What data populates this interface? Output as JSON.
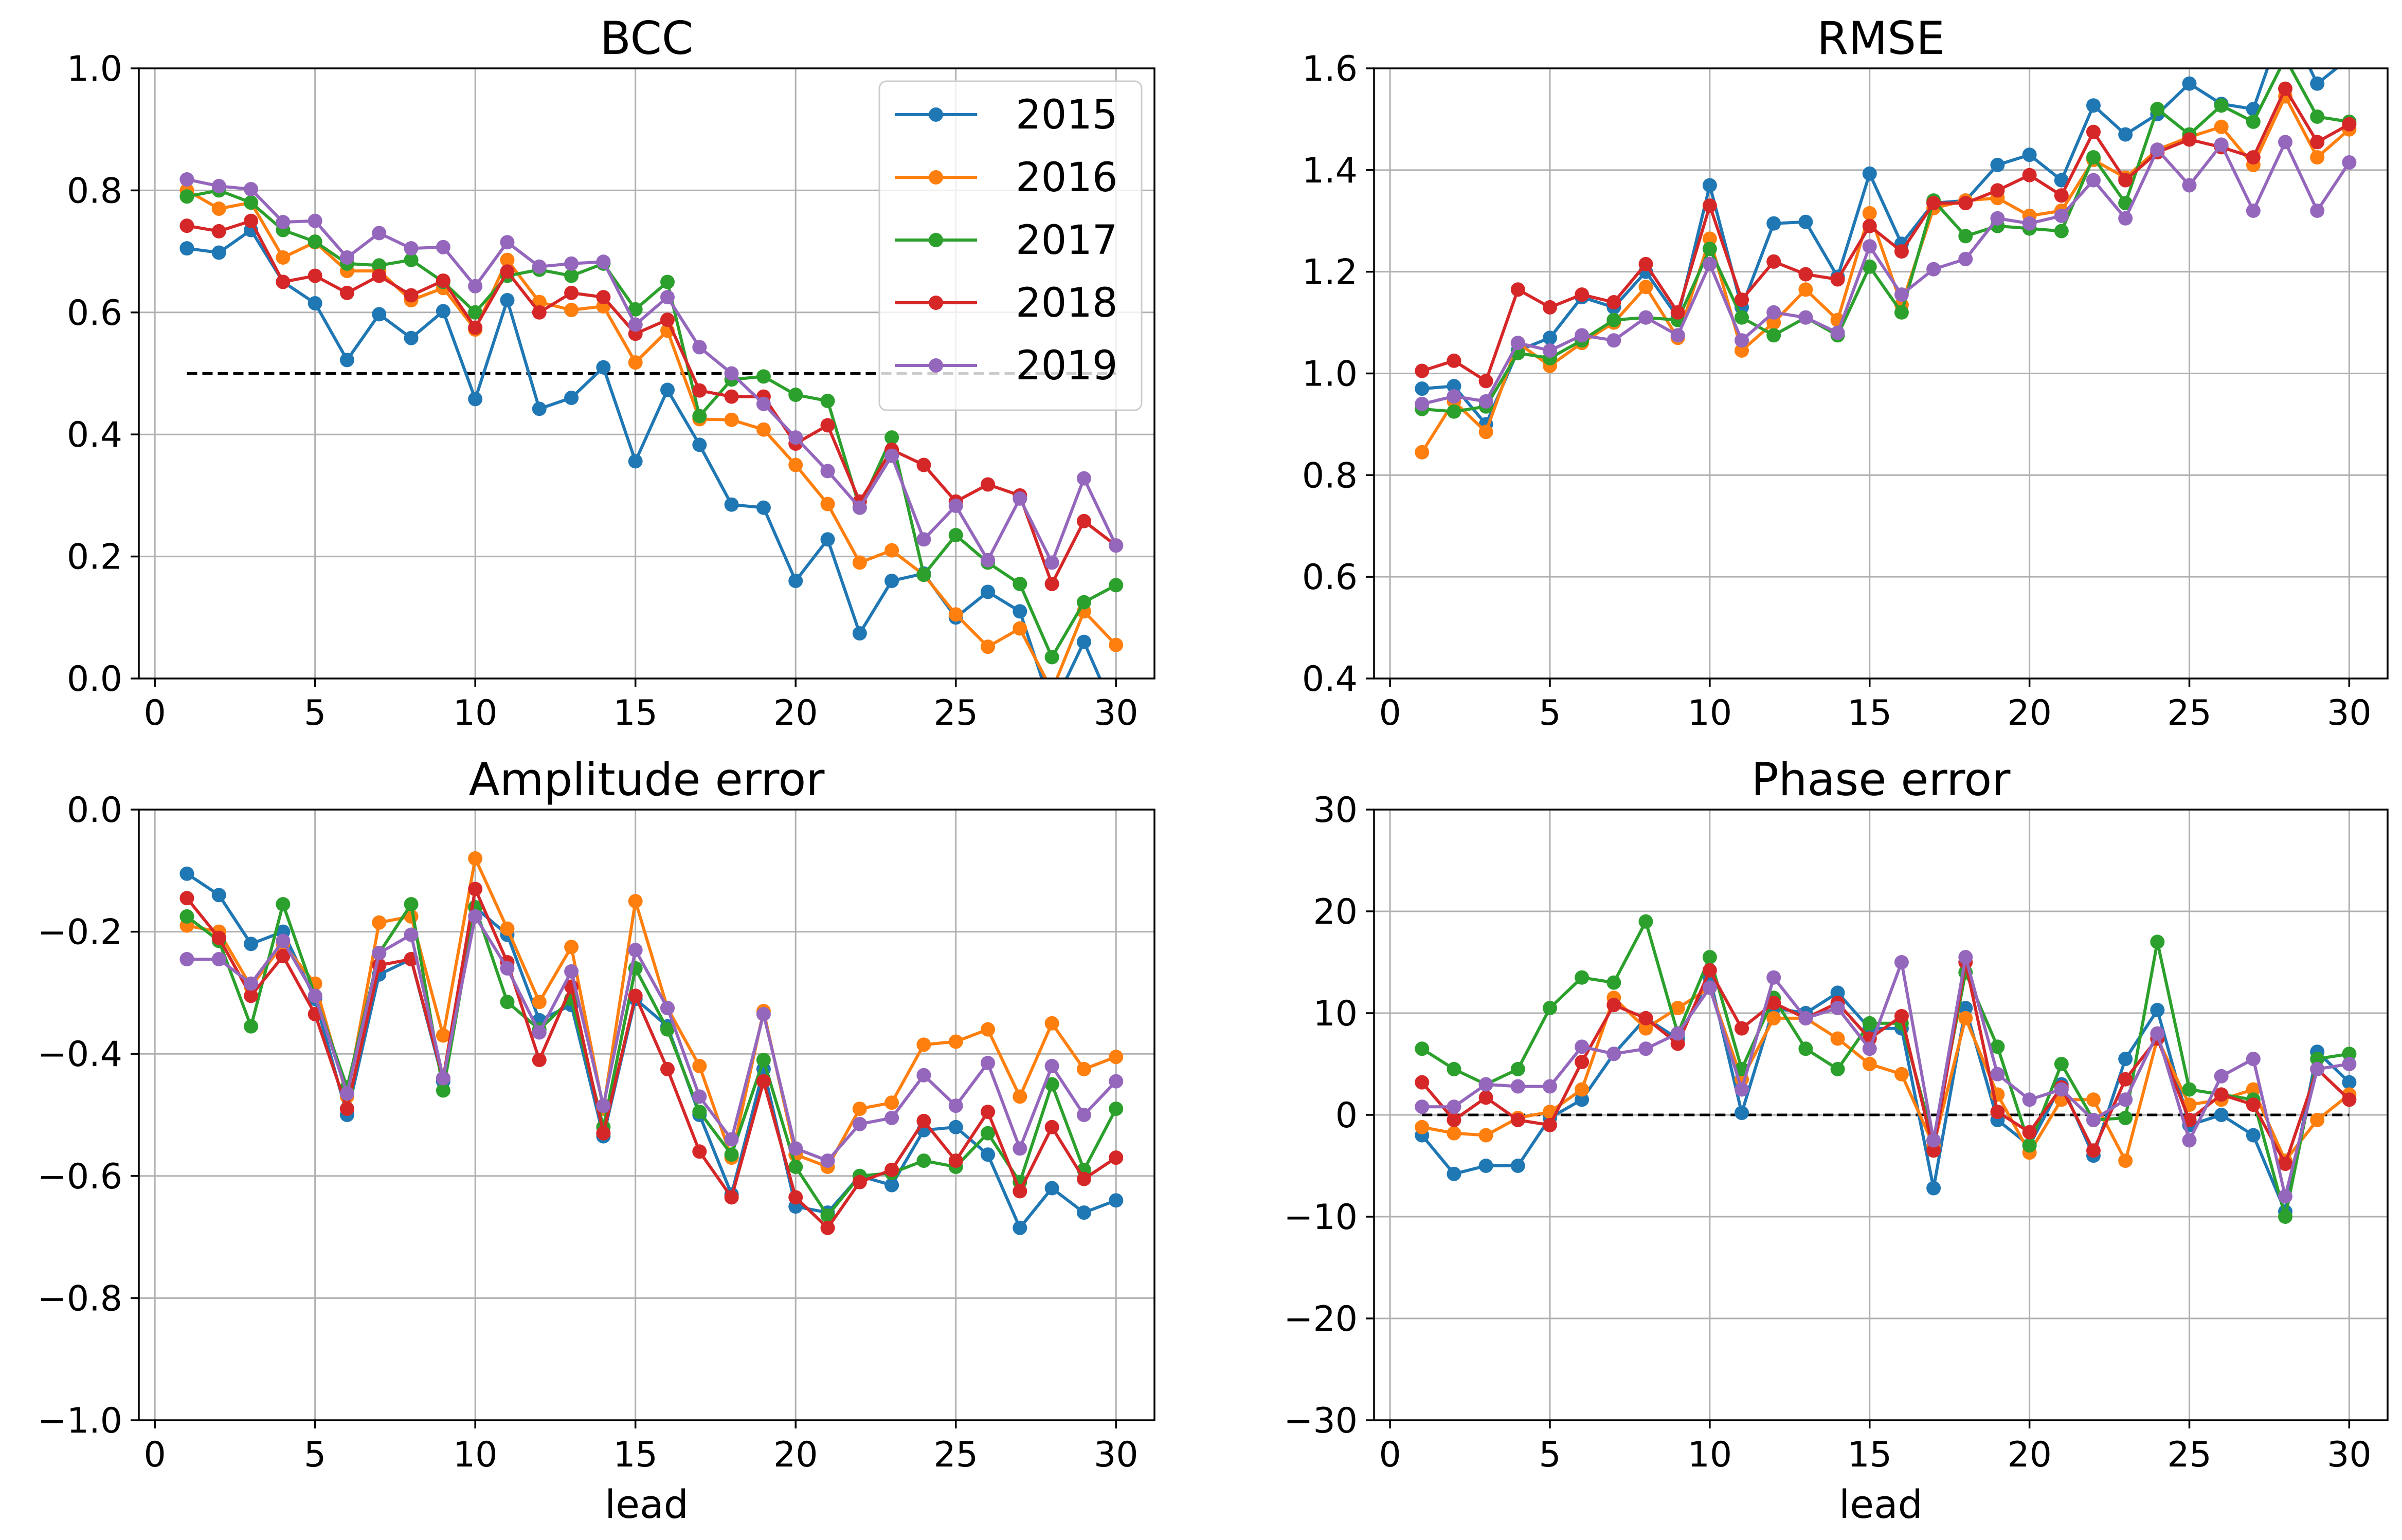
{
  "figure": {
    "legend": {
      "placement": "upper-right",
      "panel": 0,
      "entries": [
        "2015",
        "2016",
        "2017",
        "2018",
        "2019"
      ]
    },
    "series_colors": {
      "2015": "#1f77b4",
      "2016": "#ff7f0e",
      "2017": "#2ca02c",
      "2018": "#d62728",
      "2019": "#9467bd"
    },
    "reference_line_color": "#000000",
    "grid": true
  },
  "chart_data": [
    {
      "type": "line",
      "title": "BCC",
      "xlabel": "",
      "ylabel": "",
      "xlim": [
        -0.5,
        31.2
      ],
      "ylim": [
        0.0,
        1.0
      ],
      "xticks": [
        0,
        5,
        10,
        15,
        20,
        25,
        30
      ],
      "yticks": [
        0.0,
        0.2,
        0.4,
        0.6,
        0.8,
        1.0
      ],
      "ytick_labels": [
        "0.0",
        "0.2",
        "0.4",
        "0.6",
        "0.8",
        "1.0"
      ],
      "reference_line": {
        "y": 0.5,
        "x_from": 1,
        "x_to": 30
      },
      "x": [
        1,
        2,
        3,
        4,
        5,
        6,
        7,
        8,
        9,
        10,
        11,
        12,
        13,
        14,
        15,
        16,
        17,
        18,
        19,
        20,
        21,
        22,
        23,
        24,
        25,
        26,
        27,
        28,
        29,
        30
      ],
      "series": [
        {
          "name": "2015",
          "values": [
            0.705,
            0.698,
            0.735,
            0.65,
            0.615,
            0.522,
            0.597,
            0.558,
            0.602,
            0.458,
            0.62,
            0.442,
            0.46,
            0.51,
            0.356,
            0.473,
            0.383,
            0.285,
            0.28,
            0.16,
            0.228,
            0.074,
            0.16,
            0.172,
            0.1,
            0.142,
            0.11,
            -0.05,
            0.06,
            -0.06
          ]
        },
        {
          "name": "2016",
          "values": [
            0.8,
            0.77,
            0.78,
            0.69,
            0.715,
            0.668,
            0.668,
            0.62,
            0.64,
            0.572,
            0.686,
            0.617,
            0.604,
            0.61,
            0.518,
            0.57,
            0.425,
            0.424,
            0.408,
            0.35,
            0.286,
            0.19,
            0.21,
            0.17,
            0.105,
            0.052,
            0.082,
            -0.02,
            0.11,
            0.055
          ]
        },
        {
          "name": "2017",
          "values": [
            0.79,
            0.8,
            0.78,
            0.735,
            0.716,
            0.68,
            0.677,
            0.686,
            0.65,
            0.6,
            0.66,
            0.67,
            0.66,
            0.68,
            0.605,
            0.65,
            0.43,
            0.49,
            0.495,
            0.465,
            0.455,
            0.28,
            0.395,
            0.17,
            0.235,
            0.19,
            0.155,
            0.035,
            0.125,
            0.153
          ]
        },
        {
          "name": "2018",
          "values": [
            0.742,
            0.733,
            0.75,
            0.65,
            0.66,
            0.632,
            0.66,
            0.628,
            0.652,
            0.575,
            0.667,
            0.6,
            0.632,
            0.625,
            0.565,
            0.588,
            0.472,
            0.462,
            0.462,
            0.385,
            0.415,
            0.29,
            0.375,
            0.35,
            0.29,
            0.318,
            0.3,
            0.155,
            0.258,
            0.218
          ]
        },
        {
          "name": "2019",
          "values": [
            0.818,
            0.807,
            0.802,
            0.748,
            0.75,
            0.69,
            0.73,
            0.705,
            0.707,
            0.643,
            0.715,
            0.675,
            0.68,
            0.683,
            0.58,
            0.625,
            0.543,
            0.5,
            0.45,
            0.395,
            0.34,
            0.28,
            0.365,
            0.228,
            0.283,
            0.194,
            0.295,
            0.19,
            0.328,
            0.218
          ]
        }
      ]
    },
    {
      "type": "line",
      "title": "RMSE",
      "xlabel": "",
      "ylabel": "",
      "xlim": [
        -0.5,
        31.2
      ],
      "ylim": [
        0.4,
        1.6
      ],
      "xticks": [
        0,
        5,
        10,
        15,
        20,
        25,
        30
      ],
      "yticks": [
        0.4,
        0.6,
        0.8,
        1.0,
        1.2,
        1.4,
        1.6
      ],
      "ytick_labels": [
        "0.4",
        "0.6",
        "0.8",
        "1.0",
        "1.2",
        "1.4",
        "1.6"
      ],
      "x": [
        1,
        2,
        3,
        4,
        5,
        6,
        7,
        8,
        9,
        10,
        11,
        12,
        13,
        14,
        15,
        16,
        17,
        18,
        19,
        20,
        21,
        22,
        23,
        24,
        25,
        26,
        27,
        28,
        29,
        30
      ],
      "series": [
        {
          "name": "2015",
          "values": [
            0.97,
            0.975,
            0.9,
            1.045,
            1.07,
            1.15,
            1.13,
            1.2,
            1.11,
            1.37,
            1.13,
            1.295,
            1.298,
            1.19,
            1.393,
            1.255,
            1.335,
            1.34,
            1.41,
            1.43,
            1.38,
            1.527,
            1.47,
            1.51,
            1.57,
            1.53,
            1.52,
            1.7,
            1.57,
            1.62
          ]
        },
        {
          "name": "2016",
          "values": [
            0.845,
            0.945,
            0.885,
            1.06,
            1.015,
            1.06,
            1.1,
            1.17,
            1.07,
            1.265,
            1.045,
            1.1,
            1.165,
            1.105,
            1.315,
            1.135,
            1.325,
            1.34,
            1.345,
            1.31,
            1.32,
            1.42,
            1.385,
            1.44,
            1.465,
            1.485,
            1.41,
            1.545,
            1.425,
            1.48
          ]
        },
        {
          "name": "2017",
          "values": [
            0.93,
            0.925,
            0.935,
            1.04,
            1.03,
            1.065,
            1.105,
            1.11,
            1.105,
            1.245,
            1.11,
            1.075,
            1.11,
            1.075,
            1.21,
            1.12,
            1.34,
            1.27,
            1.29,
            1.285,
            1.28,
            1.425,
            1.335,
            1.52,
            1.47,
            1.527,
            1.495,
            1.62,
            1.505,
            1.495
          ]
        },
        {
          "name": "2018",
          "values": [
            1.005,
            1.025,
            0.985,
            1.165,
            1.13,
            1.155,
            1.14,
            1.215,
            1.12,
            1.33,
            1.145,
            1.22,
            1.195,
            1.185,
            1.29,
            1.24,
            1.335,
            1.335,
            1.36,
            1.39,
            1.35,
            1.475,
            1.38,
            1.435,
            1.46,
            1.445,
            1.425,
            1.56,
            1.455,
            1.49
          ]
        },
        {
          "name": "2019",
          "values": [
            0.94,
            0.955,
            0.945,
            1.06,
            1.045,
            1.075,
            1.065,
            1.11,
            1.075,
            1.215,
            1.065,
            1.12,
            1.11,
            1.08,
            1.25,
            1.155,
            1.205,
            1.225,
            1.305,
            1.295,
            1.31,
            1.38,
            1.305,
            1.44,
            1.37,
            1.45,
            1.32,
            1.455,
            1.32,
            1.415
          ]
        }
      ]
    },
    {
      "type": "line",
      "title": "Amplitude error",
      "xlabel": "lead",
      "ylabel": "",
      "xlim": [
        -0.5,
        31.2
      ],
      "ylim": [
        -1.0,
        0.0
      ],
      "xticks": [
        0,
        5,
        10,
        15,
        20,
        25,
        30
      ],
      "yticks": [
        -1.0,
        -0.8,
        -0.6,
        -0.4,
        -0.2,
        0.0
      ],
      "ytick_labels": [
        "−1.0",
        "−0.8",
        "−0.6",
        "−0.4",
        "−0.2",
        "0.0"
      ],
      "x": [
        1,
        2,
        3,
        4,
        5,
        6,
        7,
        8,
        9,
        10,
        11,
        12,
        13,
        14,
        15,
        16,
        17,
        18,
        19,
        20,
        21,
        22,
        23,
        24,
        25,
        26,
        27,
        28,
        29,
        30
      ],
      "series": [
        {
          "name": "2015",
          "values": [
            -0.105,
            -0.14,
            -0.22,
            -0.2,
            -0.31,
            -0.5,
            -0.27,
            -0.245,
            -0.445,
            -0.16,
            -0.205,
            -0.345,
            -0.32,
            -0.535,
            -0.31,
            -0.355,
            -0.5,
            -0.63,
            -0.425,
            -0.65,
            -0.66,
            -0.6,
            -0.615,
            -0.525,
            -0.52,
            -0.565,
            -0.685,
            -0.62,
            -0.66,
            -0.64
          ]
        },
        {
          "name": "2016",
          "values": [
            -0.19,
            -0.2,
            -0.29,
            -0.22,
            -0.285,
            -0.47,
            -0.185,
            -0.175,
            -0.37,
            -0.08,
            -0.195,
            -0.315,
            -0.225,
            -0.49,
            -0.15,
            -0.325,
            -0.42,
            -0.57,
            -0.33,
            -0.565,
            -0.585,
            -0.49,
            -0.48,
            -0.385,
            -0.38,
            -0.36,
            -0.47,
            -0.35,
            -0.425,
            -0.405
          ]
        },
        {
          "name": "2017",
          "values": [
            -0.175,
            -0.215,
            -0.355,
            -0.155,
            -0.305,
            -0.455,
            -0.235,
            -0.155,
            -0.46,
            -0.16,
            -0.315,
            -0.36,
            -0.31,
            -0.52,
            -0.26,
            -0.36,
            -0.495,
            -0.565,
            -0.41,
            -0.585,
            -0.665,
            -0.6,
            -0.595,
            -0.575,
            -0.585,
            -0.53,
            -0.61,
            -0.45,
            -0.59,
            -0.49
          ]
        },
        {
          "name": "2018",
          "values": [
            -0.145,
            -0.21,
            -0.305,
            -0.24,
            -0.335,
            -0.49,
            -0.255,
            -0.245,
            -0.44,
            -0.13,
            -0.25,
            -0.41,
            -0.29,
            -0.53,
            -0.305,
            -0.425,
            -0.56,
            -0.635,
            -0.445,
            -0.635,
            -0.685,
            -0.61,
            -0.59,
            -0.51,
            -0.575,
            -0.495,
            -0.625,
            -0.52,
            -0.605,
            -0.57
          ]
        },
        {
          "name": "2019",
          "values": [
            -0.245,
            -0.245,
            -0.285,
            -0.215,
            -0.305,
            -0.465,
            -0.235,
            -0.205,
            -0.44,
            -0.175,
            -0.26,
            -0.365,
            -0.265,
            -0.485,
            -0.23,
            -0.325,
            -0.47,
            -0.54,
            -0.335,
            -0.555,
            -0.575,
            -0.515,
            -0.505,
            -0.435,
            -0.485,
            -0.415,
            -0.555,
            -0.42,
            -0.5,
            -0.445
          ]
        }
      ]
    },
    {
      "type": "line",
      "title": "Phase error",
      "xlabel": "lead",
      "ylabel": "",
      "xlim": [
        -0.5,
        31.2
      ],
      "ylim": [
        -30,
        30
      ],
      "xticks": [
        0,
        5,
        10,
        15,
        20,
        25,
        30
      ],
      "yticks": [
        -30,
        -20,
        -10,
        0,
        10,
        20,
        30
      ],
      "ytick_labels": [
        "−30",
        "−20",
        "−10",
        "0",
        "10",
        "20",
        "30"
      ],
      "reference_line": {
        "y": 0,
        "x_from": 1,
        "x_to": 30
      },
      "x": [
        1,
        2,
        3,
        4,
        5,
        6,
        7,
        8,
        9,
        10,
        11,
        12,
        13,
        14,
        15,
        16,
        17,
        18,
        19,
        20,
        21,
        22,
        23,
        24,
        25,
        26,
        27,
        28,
        29,
        30
      ],
      "series": [
        {
          "name": "2015",
          "values": [
            -2.0,
            -5.8,
            -5.0,
            -5.0,
            -0.3,
            1.5,
            6.0,
            9.5,
            7.5,
            13.5,
            0.2,
            10.5,
            10.0,
            12.0,
            8.5,
            8.5,
            -7.2,
            10.5,
            -0.5,
            -3.0,
            3.0,
            -4.0,
            5.5,
            10.3,
            -1.0,
            0.0,
            -2.0,
            -9.5,
            6.2,
            3.2
          ]
        },
        {
          "name": "2016",
          "values": [
            -1.2,
            -1.8,
            -2.0,
            -0.3,
            0.3,
            2.5,
            11.5,
            8.5,
            10.5,
            12.5,
            3.5,
            9.5,
            9.5,
            7.5,
            5.0,
            4.0,
            -3.0,
            9.5,
            2.0,
            -3.7,
            1.5,
            1.5,
            -4.5,
            7.5,
            1.0,
            1.5,
            2.5,
            -4.5,
            -0.5,
            2.0
          ]
        },
        {
          "name": "2017",
          "values": [
            6.5,
            4.5,
            3.0,
            4.5,
            10.5,
            13.5,
            13.0,
            19.0,
            8.0,
            15.5,
            4.5,
            11.5,
            6.5,
            4.5,
            9.0,
            9.0,
            -2.5,
            14.0,
            6.7,
            -3.0,
            5.0,
            -0.5,
            -0.3,
            17.0,
            2.5,
            2.0,
            1.5,
            -10.0,
            5.5,
            6.0
          ]
        },
        {
          "name": "2018",
          "values": [
            3.2,
            -0.5,
            1.7,
            -0.5,
            -1.0,
            5.2,
            10.8,
            9.5,
            7.0,
            14.2,
            8.5,
            11.0,
            9.5,
            11.0,
            7.5,
            9.7,
            -3.5,
            15.0,
            0.3,
            -1.7,
            2.7,
            -3.5,
            3.5,
            7.5,
            -0.5,
            2.0,
            1.0,
            -4.8,
            4.5,
            1.5
          ]
        },
        {
          "name": "2019",
          "values": [
            0.8,
            0.8,
            3.0,
            2.8,
            2.8,
            6.7,
            6.0,
            6.5,
            8.0,
            12.5,
            2.5,
            13.5,
            9.5,
            10.5,
            6.5,
            15.0,
            -2.5,
            15.5,
            4.0,
            1.5,
            2.5,
            -0.5,
            1.5,
            8.0,
            -2.5,
            3.8,
            5.5,
            -8.0,
            4.5,
            5.0
          ]
        }
      ]
    }
  ]
}
